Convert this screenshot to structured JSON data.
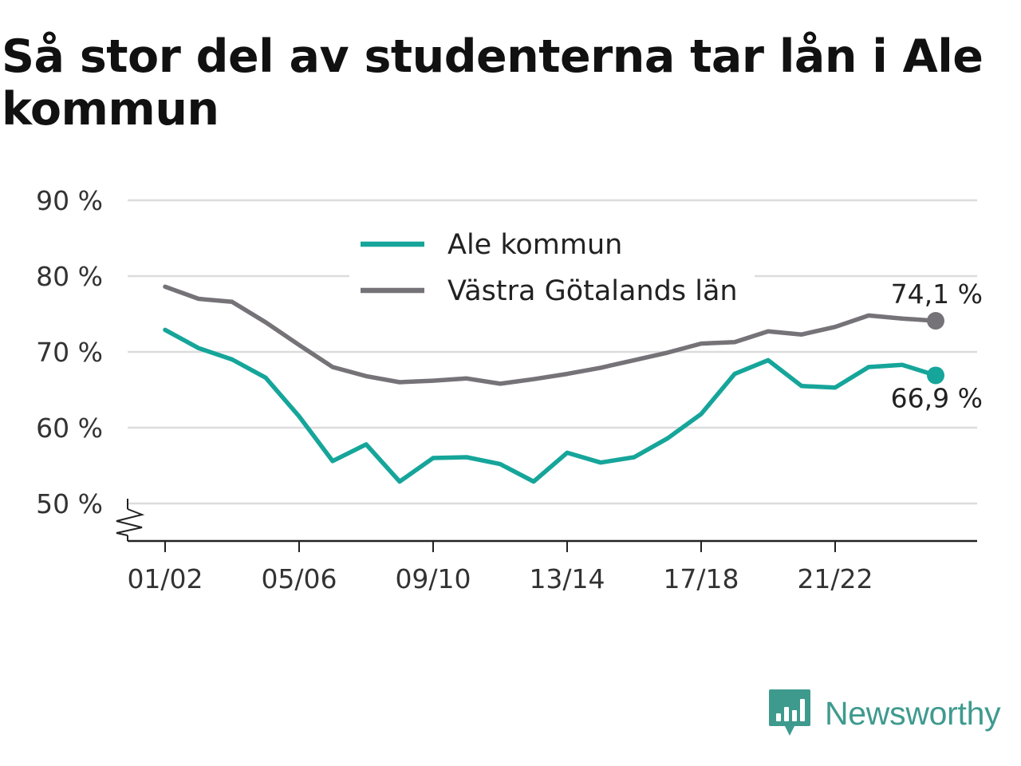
{
  "title": "Så stor del av studenterna tar lån i Ale kommun",
  "brand": {
    "name": "Newsworthy",
    "color": "#3f9a8e",
    "icon": "bar-chart-speech-bubble-icon"
  },
  "chart_data": {
    "type": "line",
    "x": [
      "01/02",
      "02/03",
      "03/04",
      "04/05",
      "05/06",
      "06/07",
      "07/08",
      "08/09",
      "09/10",
      "10/11",
      "11/12",
      "12/13",
      "13/14",
      "14/15",
      "15/16",
      "16/17",
      "17/18",
      "18/19",
      "19/20",
      "20/21",
      "21/22",
      "22/23",
      "23/24",
      "24/25"
    ],
    "xticks": [
      "01/02",
      "05/06",
      "09/10",
      "13/14",
      "17/18",
      "21/22"
    ],
    "yticks": [
      50,
      60,
      70,
      80,
      90
    ],
    "ytick_labels": [
      "50 %",
      "60 %",
      "70 %",
      "80 %",
      "90 %"
    ],
    "ylim": [
      45,
      90
    ],
    "y_axis_break": true,
    "grid": true,
    "legend_position": "top-center",
    "series": [
      {
        "name": "Ale kommun",
        "color": "#16a59a",
        "values": [
          72.9,
          70.5,
          69.0,
          66.6,
          61.5,
          55.6,
          57.8,
          52.9,
          56.0,
          56.1,
          55.2,
          52.9,
          56.7,
          55.4,
          56.1,
          58.6,
          61.8,
          67.1,
          68.9,
          65.5,
          65.3,
          68.0,
          68.3,
          66.9
        ],
        "end_label": "66,9 %"
      },
      {
        "name": "Västra Götalands län",
        "color": "#767378",
        "values": [
          78.6,
          77.0,
          76.6,
          73.9,
          70.9,
          68.0,
          66.8,
          66.0,
          66.2,
          66.5,
          65.8,
          66.4,
          67.1,
          67.9,
          68.9,
          69.9,
          71.1,
          71.3,
          72.7,
          72.3,
          73.3,
          74.8,
          74.4,
          74.1
        ],
        "end_label": "74,1 %"
      }
    ]
  }
}
